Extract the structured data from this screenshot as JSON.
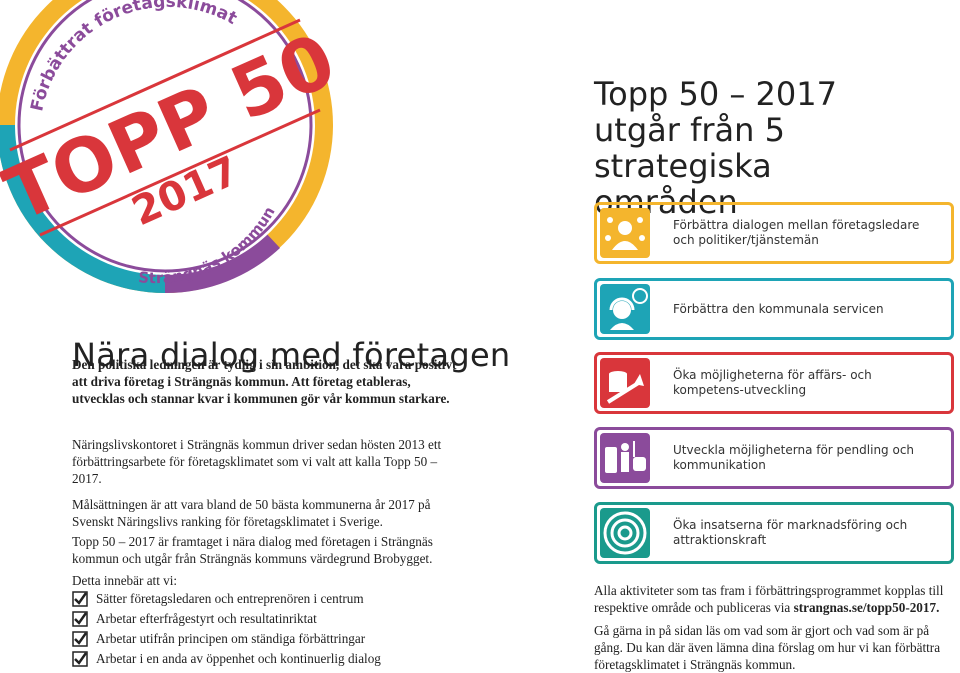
{
  "badge": {
    "top_text": "Förbättrat företagsklimat",
    "main": "TOPP 50",
    "year": "2017",
    "bottom_text": "Strängnäs kommun"
  },
  "left": {
    "heading": "Nära dialog med företagen",
    "paragraphs": [
      "Den politiska ledningen är tydlig i sin ambition, det ska vara positivt att driva företag i Strängnäs kommun. Att företag etableras, utvecklas och stannar kvar i kommunen gör vår kommun starkare.",
      "Näringslivskontoret i Strängnäs kommun driver sedan hösten 2013 ett förbättringsarbete för företagsklimatet som vi valt att kalla Topp 50 – 2017.",
      "Målsättningen är att vara bland de 50 bästa kommunerna år 2017 på Svenskt Näringslivs ranking för företagsklimatet i Sverige.",
      "Topp 50 – 2017 är framtaget i nära dialog med företagen i Strängnäs kommun och utgår från Strängnäs kommuns värdegrund Brobygget.",
      "Detta innebär att vi:"
    ],
    "checklist": [
      "Sätter företagsledaren och entreprenören i centrum",
      "Arbetar efterfrågestyrt och resultatinriktat",
      "Arbetar utifrån principen om ständiga förbättringar",
      "Arbetar i en anda av öppenhet och kontinuerlig dialog"
    ]
  },
  "right": {
    "title": [
      "Topp 50 – 2017",
      "utgår från 5 strategiska",
      "områden"
    ],
    "areas": [
      {
        "text": "Förbättra dialogen mellan företagsledare och politiker/tjänstemän",
        "color": "#f4b52d"
      },
      {
        "text": "Förbättra den kommunala servicen",
        "color": "#1ea4b6"
      },
      {
        "text": "Öka möjligheterna för affärs- och kompetens-utveckling",
        "color": "#d9363b"
      },
      {
        "text": "Utveckla möjligheterna för pendling och kommunikation",
        "color": "#8b4b9b"
      },
      {
        "text": "Öka insatserna för marknadsföring och attraktionskraft",
        "color": "#1a9a8c"
      }
    ],
    "footer": [
      {
        "text": "Alla aktiviteter som tas fram i förbättringsprogrammet kopplas till respektive område och publiceras via ",
        "link": "strangnas.se/topp50-2017."
      },
      {
        "text": "Gå gärna in på sidan läs om vad som är gjort och vad som är på gång. Du kan där även lämna dina förslag om hur vi kan förbättra företagsklimatet i Strängnäs kommun."
      }
    ]
  }
}
